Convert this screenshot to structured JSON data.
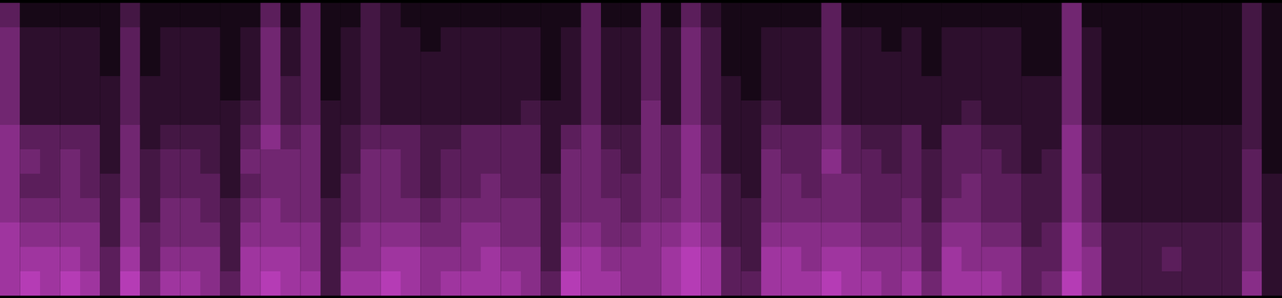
{
  "chart_data": {
    "type": "heatmap",
    "color": "#cc44cc",
    "zlim": [
      0,
      9
    ],
    "tick_labels": false,
    "grid": false,
    "cells": [
      [
        4,
        5,
        5,
        5,
        5,
        6,
        6,
        6,
        6,
        7,
        7,
        7
      ],
      [
        1,
        2,
        2,
        2,
        2,
        4,
        5,
        4,
        5,
        6,
        7,
        8
      ],
      [
        1,
        2,
        2,
        2,
        2,
        4,
        4,
        4,
        5,
        6,
        7,
        7
      ],
      [
        1,
        2,
        2,
        2,
        2,
        4,
        5,
        5,
        5,
        6,
        7,
        8
      ],
      [
        1,
        2,
        2,
        2,
        2,
        4,
        4,
        4,
        5,
        6,
        6,
        7
      ],
      [
        1,
        1,
        1,
        2,
        2,
        2,
        2,
        3,
        3,
        3,
        4,
        4
      ],
      [
        3,
        4,
        4,
        4,
        4,
        5,
        5,
        5,
        6,
        6,
        7,
        8
      ],
      [
        1,
        1,
        1,
        2,
        2,
        2,
        3,
        3,
        3,
        4,
        4,
        5
      ],
      [
        1,
        2,
        2,
        2,
        2,
        3,
        4,
        4,
        5,
        5,
        6,
        7
      ],
      [
        1,
        2,
        2,
        2,
        2,
        3,
        4,
        4,
        5,
        5,
        6,
        7
      ],
      [
        1,
        2,
        2,
        2,
        2,
        3,
        3,
        4,
        4,
        5,
        6,
        6
      ],
      [
        1,
        1,
        1,
        1,
        2,
        2,
        2,
        2,
        3,
        3,
        3,
        4
      ],
      [
        1,
        2,
        2,
        2,
        3,
        4,
        5,
        4,
        5,
        6,
        7,
        7
      ],
      [
        4,
        5,
        5,
        5,
        5,
        6,
        5,
        5,
        6,
        6,
        7,
        8
      ],
      [
        1,
        2,
        2,
        3,
        3,
        4,
        5,
        5,
        5,
        6,
        7,
        7
      ],
      [
        4,
        4,
        4,
        4,
        4,
        5,
        5,
        5,
        5,
        6,
        6,
        7
      ],
      [
        1,
        1,
        1,
        1,
        2,
        2,
        2,
        2,
        3,
        3,
        3,
        3
      ],
      [
        1,
        2,
        2,
        2,
        2,
        3,
        3,
        4,
        4,
        5,
        6,
        7
      ],
      [
        3,
        3,
        3,
        3,
        3,
        4,
        5,
        5,
        5,
        6,
        6,
        7
      ],
      [
        2,
        2,
        2,
        2,
        2,
        4,
        5,
        5,
        5,
        6,
        7,
        8
      ],
      [
        1,
        2,
        2,
        2,
        2,
        4,
        4,
        4,
        5,
        6,
        7,
        7
      ],
      [
        1,
        1,
        2,
        2,
        2,
        3,
        3,
        3,
        4,
        5,
        6,
        6
      ],
      [
        1,
        2,
        2,
        2,
        2,
        3,
        4,
        4,
        5,
        5,
        6,
        7
      ],
      [
        1,
        2,
        2,
        2,
        2,
        4,
        4,
        4,
        5,
        6,
        6,
        7
      ],
      [
        1,
        2,
        2,
        2,
        2,
        4,
        4,
        5,
        5,
        6,
        7,
        7
      ],
      [
        1,
        2,
        2,
        2,
        2,
        4,
        4,
        4,
        5,
        5,
        6,
        7
      ],
      [
        1,
        2,
        2,
        2,
        3,
        4,
        4,
        4,
        5,
        5,
        6,
        6
      ],
      [
        1,
        1,
        1,
        1,
        2,
        2,
        2,
        3,
        3,
        3,
        3,
        4
      ],
      [
        1,
        2,
        2,
        2,
        2,
        4,
        5,
        5,
        5,
        6,
        7,
        8
      ],
      [
        4,
        4,
        4,
        4,
        4,
        5,
        5,
        5,
        5,
        6,
        7,
        7
      ],
      [
        1,
        2,
        2,
        2,
        2,
        3,
        4,
        4,
        5,
        5,
        6,
        7
      ],
      [
        1,
        2,
        2,
        2,
        2,
        3,
        3,
        4,
        4,
        5,
        6,
        6
      ],
      [
        4,
        4,
        4,
        4,
        5,
        5,
        5,
        5,
        5,
        6,
        6,
        6
      ],
      [
        1,
        2,
        2,
        2,
        2,
        4,
        4,
        4,
        5,
        6,
        7,
        7
      ],
      [
        4,
        5,
        5,
        5,
        5,
        6,
        6,
        6,
        6,
        7,
        8,
        8
      ],
      [
        2,
        3,
        3,
        3,
        3,
        4,
        4,
        5,
        5,
        6,
        7,
        7
      ],
      [
        1,
        1,
        1,
        2,
        2,
        2,
        2,
        3,
        3,
        3,
        4,
        4
      ],
      [
        1,
        1,
        1,
        1,
        2,
        2,
        2,
        2,
        3,
        3,
        3,
        4
      ],
      [
        1,
        2,
        2,
        2,
        3,
        4,
        5,
        5,
        5,
        6,
        7,
        7
      ],
      [
        1,
        2,
        2,
        2,
        2,
        4,
        4,
        5,
        5,
        6,
        7,
        7
      ],
      [
        1,
        2,
        2,
        2,
        2,
        4,
        4,
        4,
        5,
        6,
        6,
        7
      ],
      [
        4,
        4,
        4,
        4,
        4,
        5,
        6,
        5,
        5,
        6,
        7,
        8
      ],
      [
        1,
        2,
        2,
        2,
        2,
        4,
        4,
        5,
        5,
        6,
        7,
        7
      ],
      [
        1,
        2,
        2,
        2,
        2,
        3,
        4,
        4,
        4,
        5,
        6,
        7
      ],
      [
        1,
        1,
        2,
        2,
        2,
        3,
        3,
        4,
        4,
        5,
        6,
        6
      ],
      [
        1,
        2,
        2,
        2,
        2,
        4,
        4,
        4,
        5,
        5,
        6,
        7
      ],
      [
        1,
        1,
        1,
        2,
        2,
        2,
        3,
        3,
        3,
        4,
        4,
        5
      ],
      [
        1,
        2,
        2,
        2,
        2,
        4,
        4,
        4,
        5,
        6,
        7,
        7
      ],
      [
        1,
        2,
        2,
        2,
        3,
        4,
        4,
        5,
        5,
        6,
        6,
        7
      ],
      [
        1,
        2,
        2,
        2,
        2,
        3,
        4,
        4,
        4,
        5,
        6,
        7
      ],
      [
        1,
        2,
        2,
        2,
        2,
        3,
        3,
        4,
        4,
        5,
        6,
        6
      ],
      [
        1,
        1,
        1,
        2,
        2,
        2,
        2,
        3,
        3,
        3,
        4,
        4
      ],
      [
        1,
        1,
        1,
        2,
        2,
        2,
        3,
        3,
        3,
        4,
        4,
        5
      ],
      [
        5,
        5,
        5,
        5,
        5,
        6,
        6,
        6,
        6,
        7,
        7,
        8
      ],
      [
        1,
        2,
        2,
        2,
        2,
        3,
        3,
        4,
        4,
        5,
        6,
        6
      ],
      [
        1,
        1,
        1,
        1,
        1,
        2,
        2,
        2,
        2,
        3,
        3,
        3
      ],
      [
        1,
        1,
        1,
        1,
        1,
        2,
        2,
        2,
        2,
        3,
        3,
        3
      ],
      [
        1,
        1,
        1,
        1,
        1,
        2,
        2,
        2,
        2,
        3,
        3,
        3
      ],
      [
        1,
        1,
        1,
        1,
        1,
        2,
        2,
        2,
        2,
        3,
        4,
        3
      ],
      [
        1,
        1,
        1,
        1,
        1,
        2,
        2,
        2,
        2,
        3,
        3,
        3
      ],
      [
        1,
        1,
        1,
        1,
        1,
        2,
        2,
        2,
        2,
        3,
        3,
        3
      ],
      [
        1,
        1,
        1,
        1,
        1,
        2,
        2,
        2,
        2,
        3,
        3,
        3
      ],
      [
        3,
        3,
        3,
        3,
        3,
        3,
        4,
        4,
        4,
        5,
        5,
        6
      ],
      [
        1,
        1,
        1,
        1,
        1,
        1,
        1,
        2,
        2,
        2,
        2,
        2
      ]
    ]
  }
}
